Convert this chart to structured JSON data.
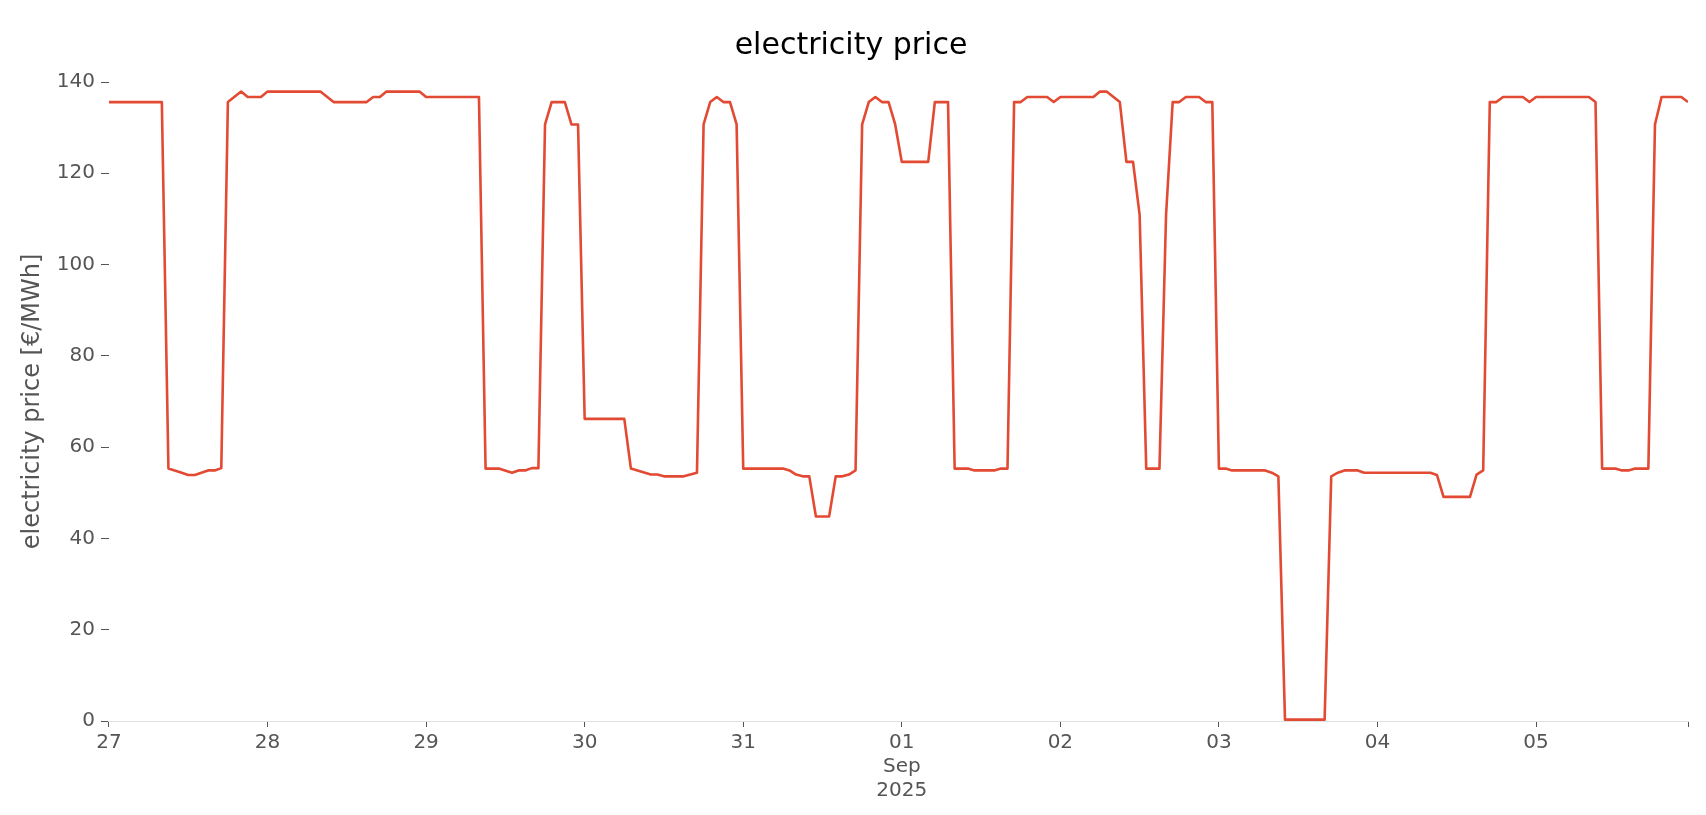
{
  "chart_data": {
    "type": "line",
    "title": "electricity price",
    "ylabel": "electricity price [€/MWh]",
    "xlim": [
      "2025-08-27T00:00",
      "2025-09-05T23:00"
    ],
    "xticks": [
      {
        "value": "2025-08-27T00:00",
        "label": "27"
      },
      {
        "value": "2025-08-28T00:00",
        "label": "28"
      },
      {
        "value": "2025-08-29T00:00",
        "label": "29"
      },
      {
        "value": "2025-08-30T00:00",
        "label": "30"
      },
      {
        "value": "2025-08-31T00:00",
        "label": "31"
      },
      {
        "value": "2025-09-01T00:00",
        "label": "01\nSep\n2025"
      },
      {
        "value": "2025-09-02T00:00",
        "label": "02"
      },
      {
        "value": "2025-09-03T00:00",
        "label": "03"
      },
      {
        "value": "2025-09-04T00:00",
        "label": "04"
      },
      {
        "value": "2025-09-05T00:00",
        "label": "05"
      },
      {
        "value": "2025-09-05T23:00",
        "label": null
      }
    ],
    "ylim": [
      0,
      140
    ],
    "yticks": [
      0,
      20,
      40,
      60,
      80,
      100,
      120,
      140
    ],
    "grid": false,
    "legend": false,
    "marker": "none",
    "line_style": "solid",
    "series": [
      {
        "color": "#e24a33",
        "x": [
          "2025-08-27T00:00",
          "2025-08-27T08:00",
          "2025-08-27T09:00",
          "2025-08-27T11:00",
          "2025-08-27T12:00",
          "2025-08-27T13:00",
          "2025-08-27T15:00",
          "2025-08-27T16:00",
          "2025-08-27T17:00",
          "2025-08-27T18:00",
          "2025-08-27T20:00",
          "2025-08-27T21:00",
          "2025-08-27T23:00",
          "2025-08-28T00:00",
          "2025-08-28T08:00",
          "2025-08-28T10:00",
          "2025-08-28T15:00",
          "2025-08-28T16:00",
          "2025-08-28T17:00",
          "2025-08-28T18:00",
          "2025-08-28T23:00",
          "2025-08-29T00:00",
          "2025-08-29T08:00",
          "2025-08-29T09:00",
          "2025-08-29T11:00",
          "2025-08-29T13:00",
          "2025-08-29T14:00",
          "2025-08-29T15:00",
          "2025-08-29T16:00",
          "2025-08-29T17:00",
          "2025-08-29T18:00",
          "2025-08-29T19:00",
          "2025-08-29T21:00",
          "2025-08-29T22:00",
          "2025-08-29T23:00",
          "2025-08-30T00:00",
          "2025-08-30T06:00",
          "2025-08-30T07:00",
          "2025-08-30T10:00",
          "2025-08-30T11:00",
          "2025-08-30T12:00",
          "2025-08-30T15:00",
          "2025-08-30T17:00",
          "2025-08-30T18:00",
          "2025-08-30T19:00",
          "2025-08-30T20:00",
          "2025-08-30T21:00",
          "2025-08-30T22:00",
          "2025-08-30T23:00",
          "2025-08-31T00:00",
          "2025-08-31T06:00",
          "2025-08-31T07:00",
          "2025-08-31T08:00",
          "2025-08-31T09:00",
          "2025-08-31T10:00",
          "2025-08-31T11:00",
          "2025-08-31T13:00",
          "2025-08-31T14:00",
          "2025-08-31T15:00",
          "2025-08-31T16:00",
          "2025-08-31T17:00",
          "2025-08-31T18:00",
          "2025-08-31T19:00",
          "2025-08-31T20:00",
          "2025-08-31T21:00",
          "2025-08-31T22:00",
          "2025-08-31T23:00",
          "2025-09-01T00:00",
          "2025-09-01T04:00",
          "2025-09-01T05:00",
          "2025-09-01T07:00",
          "2025-09-01T08:00",
          "2025-09-01T10:00",
          "2025-09-01T11:00",
          "2025-09-01T14:00",
          "2025-09-01T15:00",
          "2025-09-01T16:00",
          "2025-09-01T17:00",
          "2025-09-01T18:00",
          "2025-09-01T19:00",
          "2025-09-01T22:00",
          "2025-09-01T23:00",
          "2025-09-02T00:00",
          "2025-09-02T05:00",
          "2025-09-02T06:00",
          "2025-09-02T07:00",
          "2025-09-02T09:00",
          "2025-09-02T10:00",
          "2025-09-02T11:00",
          "2025-09-02T12:00",
          "2025-09-02T13:00",
          "2025-09-02T15:00",
          "2025-09-02T16:00",
          "2025-09-02T17:00",
          "2025-09-02T18:00",
          "2025-09-02T19:00",
          "2025-09-02T21:00",
          "2025-09-02T22:00",
          "2025-09-02T23:00",
          "2025-09-03T00:00",
          "2025-09-03T01:00",
          "2025-09-03T02:00",
          "2025-09-03T07:00",
          "2025-09-03T08:00",
          "2025-09-03T09:00",
          "2025-09-03T10:00",
          "2025-09-03T16:00",
          "2025-09-03T17:00",
          "2025-09-03T18:00",
          "2025-09-03T19:00",
          "2025-09-03T21:00",
          "2025-09-03T22:00",
          "2025-09-04T08:00",
          "2025-09-04T09:00",
          "2025-09-04T10:00",
          "2025-09-04T14:00",
          "2025-09-04T15:00",
          "2025-09-04T16:00",
          "2025-09-04T17:00",
          "2025-09-04T18:00",
          "2025-09-04T19:00",
          "2025-09-04T22:00",
          "2025-09-04T23:00",
          "2025-09-05T00:00",
          "2025-09-05T08:00",
          "2025-09-05T09:00",
          "2025-09-05T10:00",
          "2025-09-05T12:00",
          "2025-09-05T13:00",
          "2025-09-05T14:00",
          "2025-09-05T15:00",
          "2025-09-05T17:00",
          "2025-09-05T18:00",
          "2025-09-05T19:00",
          "2025-09-05T22:00",
          "2025-09-05T23:00"
        ],
        "values": [
          135.6,
          135.6,
          55.3,
          54.4,
          53.9,
          53.9,
          54.9,
          54.9,
          55.4,
          135.6,
          137.9,
          136.7,
          136.7,
          137.9,
          137.9,
          135.6,
          135.6,
          136.7,
          136.7,
          137.9,
          137.9,
          136.7,
          136.7,
          55.3,
          55.3,
          54.4,
          54.9,
          54.9,
          55.4,
          55.4,
          130.7,
          135.6,
          135.6,
          130.7,
          130.7,
          66.2,
          66.2,
          55.3,
          54.0,
          54.0,
          53.6,
          53.6,
          54.4,
          130.7,
          135.6,
          136.7,
          135.6,
          135.6,
          130.7,
          55.3,
          55.3,
          54.9,
          54.0,
          53.6,
          53.6,
          44.8,
          44.8,
          53.6,
          53.6,
          54.0,
          54.9,
          130.7,
          135.6,
          136.7,
          135.6,
          135.6,
          130.7,
          122.5,
          122.5,
          135.6,
          135.6,
          55.3,
          55.3,
          54.9,
          54.9,
          55.3,
          55.3,
          135.6,
          135.6,
          136.7,
          136.7,
          135.6,
          136.7,
          136.7,
          137.9,
          137.9,
          135.6,
          122.5,
          122.5,
          110.9,
          55.3,
          55.3,
          110.9,
          135.6,
          135.6,
          136.7,
          136.7,
          135.6,
          135.6,
          55.3,
          55.3,
          54.9,
          54.9,
          54.4,
          53.6,
          0.3,
          0.3,
          53.6,
          54.4,
          54.9,
          54.9,
          54.4,
          54.4,
          53.9,
          49.1,
          49.1,
          54.0,
          54.9,
          135.6,
          135.6,
          136.7,
          136.7,
          135.6,
          136.7,
          136.7,
          135.6,
          55.3,
          55.3,
          54.9,
          54.9,
          55.3,
          55.3,
          130.7,
          136.7,
          136.7,
          135.6
        ]
      }
    ]
  }
}
